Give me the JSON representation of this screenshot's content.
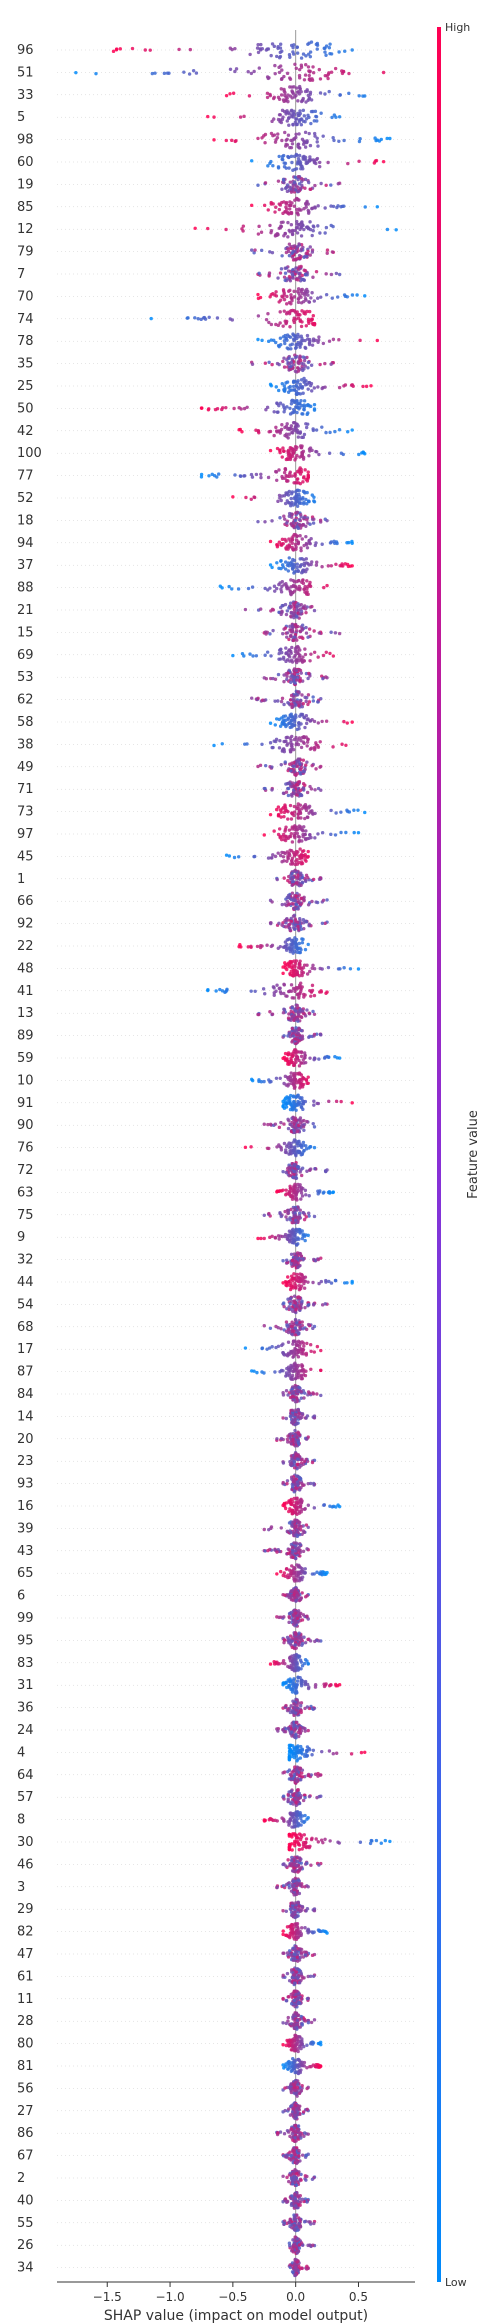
{
  "chart_data": {
    "type": "scatter",
    "subtype": "shap-beeswarm",
    "title": "",
    "xlabel": "SHAP value (impact on model output)",
    "ylabel": "",
    "xlim": [
      -1.9,
      0.95
    ],
    "xticks": [
      -1.5,
      -1.0,
      -0.5,
      0.0,
      0.5
    ],
    "xtick_labels": [
      "−1.5",
      "−1.0",
      "−0.5",
      "0.0",
      "0.5"
    ],
    "grid": false,
    "legend": "none",
    "colorbar": {
      "label": "Feature value",
      "high_label": "High",
      "low_label": "Low",
      "high_color": "#ff0052",
      "low_color": "#008bfb"
    },
    "features": [
      {
        "name": "96",
        "min": -1.45,
        "max": 0.45,
        "dist": "neg-red"
      },
      {
        "name": "51",
        "min": -1.75,
        "max": 0.7,
        "dist": "neg-blue"
      },
      {
        "name": "33",
        "min": -0.55,
        "max": 0.55,
        "dist": "neg-red"
      },
      {
        "name": "5",
        "min": -0.7,
        "max": 0.35,
        "dist": "neg-red"
      },
      {
        "name": "98",
        "min": -0.65,
        "max": 0.75,
        "dist": "pos-blue"
      },
      {
        "name": "60",
        "min": -0.35,
        "max": 0.7,
        "dist": "pos-red"
      },
      {
        "name": "19",
        "min": -0.3,
        "max": 0.35,
        "dist": "mixed"
      },
      {
        "name": "85",
        "min": -0.35,
        "max": 0.65,
        "dist": "pos-blue"
      },
      {
        "name": "12",
        "min": -0.8,
        "max": 0.8,
        "dist": "pos-blue"
      },
      {
        "name": "79",
        "min": -0.35,
        "max": 0.3,
        "dist": "mixed"
      },
      {
        "name": "7",
        "min": -0.3,
        "max": 0.35,
        "dist": "mixed"
      },
      {
        "name": "70",
        "min": -0.3,
        "max": 0.55,
        "dist": "pos-blue"
      },
      {
        "name": "74",
        "min": -1.15,
        "max": 0.15,
        "dist": "neg-blue"
      },
      {
        "name": "78",
        "min": -0.3,
        "max": 0.65,
        "dist": "pos-red"
      },
      {
        "name": "35",
        "min": -0.35,
        "max": 0.3,
        "dist": "mixed"
      },
      {
        "name": "25",
        "min": -0.2,
        "max": 0.6,
        "dist": "pos-red"
      },
      {
        "name": "50",
        "min": -0.75,
        "max": 0.15,
        "dist": "neg-red"
      },
      {
        "name": "42",
        "min": -0.45,
        "max": 0.45,
        "dist": "pos-blue"
      },
      {
        "name": "100",
        "min": -0.2,
        "max": 0.55,
        "dist": "pos-blue"
      },
      {
        "name": "77",
        "min": -0.75,
        "max": 0.1,
        "dist": "neg-blue"
      },
      {
        "name": "52",
        "min": -0.5,
        "max": 0.15,
        "dist": "neg-red"
      },
      {
        "name": "18",
        "min": -0.3,
        "max": 0.25,
        "dist": "mixed"
      },
      {
        "name": "94",
        "min": -0.2,
        "max": 0.45,
        "dist": "pos-blue"
      },
      {
        "name": "37",
        "min": -0.2,
        "max": 0.45,
        "dist": "pos-red"
      },
      {
        "name": "88",
        "min": -0.6,
        "max": 0.25,
        "dist": "neg-blue"
      },
      {
        "name": "21",
        "min": -0.4,
        "max": 0.15,
        "dist": "mixed"
      },
      {
        "name": "15",
        "min": -0.25,
        "max": 0.35,
        "dist": "mixed"
      },
      {
        "name": "69",
        "min": -0.5,
        "max": 0.3,
        "dist": "neg-blue"
      },
      {
        "name": "53",
        "min": -0.25,
        "max": 0.25,
        "dist": "mixed"
      },
      {
        "name": "62",
        "min": -0.35,
        "max": 0.2,
        "dist": "mixed"
      },
      {
        "name": "58",
        "min": -0.2,
        "max": 0.45,
        "dist": "pos-red"
      },
      {
        "name": "38",
        "min": -0.65,
        "max": 0.4,
        "dist": "neg-blue"
      },
      {
        "name": "49",
        "min": -0.3,
        "max": 0.2,
        "dist": "mixed"
      },
      {
        "name": "71",
        "min": -0.25,
        "max": 0.2,
        "dist": "mixed"
      },
      {
        "name": "73",
        "min": -0.2,
        "max": 0.55,
        "dist": "pos-blue"
      },
      {
        "name": "97",
        "min": -0.25,
        "max": 0.5,
        "dist": "pos-blue"
      },
      {
        "name": "45",
        "min": -0.55,
        "max": 0.1,
        "dist": "neg-blue"
      },
      {
        "name": "1",
        "min": -0.15,
        "max": 0.2,
        "dist": "mixed"
      },
      {
        "name": "66",
        "min": -0.2,
        "max": 0.25,
        "dist": "mixed"
      },
      {
        "name": "92",
        "min": -0.2,
        "max": 0.25,
        "dist": "mixed"
      },
      {
        "name": "22",
        "min": -0.45,
        "max": 0.1,
        "dist": "neg-red"
      },
      {
        "name": "48",
        "min": -0.1,
        "max": 0.5,
        "dist": "pos-blue"
      },
      {
        "name": "41",
        "min": -0.7,
        "max": 0.25,
        "dist": "neg-blue"
      },
      {
        "name": "13",
        "min": -0.3,
        "max": 0.15,
        "dist": "mixed"
      },
      {
        "name": "89",
        "min": -0.1,
        "max": 0.2,
        "dist": "mixed"
      },
      {
        "name": "59",
        "min": -0.1,
        "max": 0.35,
        "dist": "pos-blue"
      },
      {
        "name": "10",
        "min": -0.35,
        "max": 0.1,
        "dist": "neg-blue"
      },
      {
        "name": "91",
        "min": -0.1,
        "max": 0.45,
        "dist": "pos-red"
      },
      {
        "name": "90",
        "min": -0.25,
        "max": 0.15,
        "dist": "mixed"
      },
      {
        "name": "76",
        "min": -0.4,
        "max": 0.15,
        "dist": "neg-red"
      },
      {
        "name": "72",
        "min": -0.1,
        "max": 0.25,
        "dist": "mixed"
      },
      {
        "name": "63",
        "min": -0.15,
        "max": 0.3,
        "dist": "pos-blue"
      },
      {
        "name": "75",
        "min": -0.25,
        "max": 0.15,
        "dist": "mixed"
      },
      {
        "name": "9",
        "min": -0.3,
        "max": 0.1,
        "dist": "neg-red"
      },
      {
        "name": "32",
        "min": -0.1,
        "max": 0.2,
        "dist": "mixed"
      },
      {
        "name": "44",
        "min": -0.1,
        "max": 0.45,
        "dist": "pos-blue"
      },
      {
        "name": "54",
        "min": -0.1,
        "max": 0.25,
        "dist": "mixed"
      },
      {
        "name": "68",
        "min": -0.25,
        "max": 0.15,
        "dist": "mixed"
      },
      {
        "name": "17",
        "min": -0.4,
        "max": 0.2,
        "dist": "neg-blue"
      },
      {
        "name": "87",
        "min": -0.35,
        "max": 0.2,
        "dist": "neg-blue"
      },
      {
        "name": "84",
        "min": -0.1,
        "max": 0.2,
        "dist": "mixed"
      },
      {
        "name": "14",
        "min": -0.1,
        "max": 0.15,
        "dist": "mixed"
      },
      {
        "name": "20",
        "min": -0.15,
        "max": 0.1,
        "dist": "mixed"
      },
      {
        "name": "23",
        "min": -0.1,
        "max": 0.15,
        "dist": "mixed"
      },
      {
        "name": "93",
        "min": -0.1,
        "max": 0.15,
        "dist": "mixed"
      },
      {
        "name": "16",
        "min": -0.1,
        "max": 0.35,
        "dist": "pos-blue"
      },
      {
        "name": "39",
        "min": -0.25,
        "max": 0.1,
        "dist": "mixed"
      },
      {
        "name": "43",
        "min": -0.25,
        "max": 0.1,
        "dist": "mixed"
      },
      {
        "name": "65",
        "min": -0.15,
        "max": 0.25,
        "dist": "pos-blue"
      },
      {
        "name": "6",
        "min": -0.1,
        "max": 0.1,
        "dist": "mixed"
      },
      {
        "name": "99",
        "min": -0.15,
        "max": 0.1,
        "dist": "mixed"
      },
      {
        "name": "95",
        "min": -0.1,
        "max": 0.2,
        "dist": "mixed"
      },
      {
        "name": "83",
        "min": -0.2,
        "max": 0.1,
        "dist": "neg-red"
      },
      {
        "name": "31",
        "min": -0.1,
        "max": 0.35,
        "dist": "pos-red"
      },
      {
        "name": "36",
        "min": -0.1,
        "max": 0.15,
        "dist": "mixed"
      },
      {
        "name": "24",
        "min": -0.15,
        "max": 0.1,
        "dist": "mixed"
      },
      {
        "name": "4",
        "min": -0.05,
        "max": 0.55,
        "dist": "pos-red"
      },
      {
        "name": "64",
        "min": -0.1,
        "max": 0.2,
        "dist": "mixed"
      },
      {
        "name": "57",
        "min": -0.1,
        "max": 0.2,
        "dist": "mixed"
      },
      {
        "name": "8",
        "min": -0.25,
        "max": 0.1,
        "dist": "neg-red"
      },
      {
        "name": "30",
        "min": -0.05,
        "max": 0.75,
        "dist": "pos-blue"
      },
      {
        "name": "46",
        "min": -0.1,
        "max": 0.2,
        "dist": "mixed"
      },
      {
        "name": "3",
        "min": -0.15,
        "max": 0.1,
        "dist": "mixed"
      },
      {
        "name": "29",
        "min": -0.1,
        "max": 0.15,
        "dist": "mixed"
      },
      {
        "name": "82",
        "min": -0.1,
        "max": 0.25,
        "dist": "pos-blue"
      },
      {
        "name": "47",
        "min": -0.1,
        "max": 0.15,
        "dist": "mixed"
      },
      {
        "name": "61",
        "min": -0.1,
        "max": 0.15,
        "dist": "mixed"
      },
      {
        "name": "11",
        "min": -0.1,
        "max": 0.1,
        "dist": "mixed"
      },
      {
        "name": "28",
        "min": -0.1,
        "max": 0.15,
        "dist": "mixed"
      },
      {
        "name": "80",
        "min": -0.1,
        "max": 0.2,
        "dist": "pos-blue"
      },
      {
        "name": "81",
        "min": -0.1,
        "max": 0.2,
        "dist": "pos-red"
      },
      {
        "name": "56",
        "min": -0.1,
        "max": 0.1,
        "dist": "mixed"
      },
      {
        "name": "27",
        "min": -0.1,
        "max": 0.1,
        "dist": "mixed"
      },
      {
        "name": "86",
        "min": -0.15,
        "max": 0.1,
        "dist": "mixed"
      },
      {
        "name": "67",
        "min": -0.1,
        "max": 0.1,
        "dist": "mixed"
      },
      {
        "name": "2",
        "min": -0.1,
        "max": 0.15,
        "dist": "mixed"
      },
      {
        "name": "40",
        "min": -0.1,
        "max": 0.1,
        "dist": "mixed"
      },
      {
        "name": "55",
        "min": -0.1,
        "max": 0.15,
        "dist": "mixed"
      },
      {
        "name": "26",
        "min": -0.05,
        "max": 0.15,
        "dist": "mixed"
      },
      {
        "name": "34",
        "min": -0.05,
        "max": 0.1,
        "dist": "mixed"
      }
    ]
  }
}
